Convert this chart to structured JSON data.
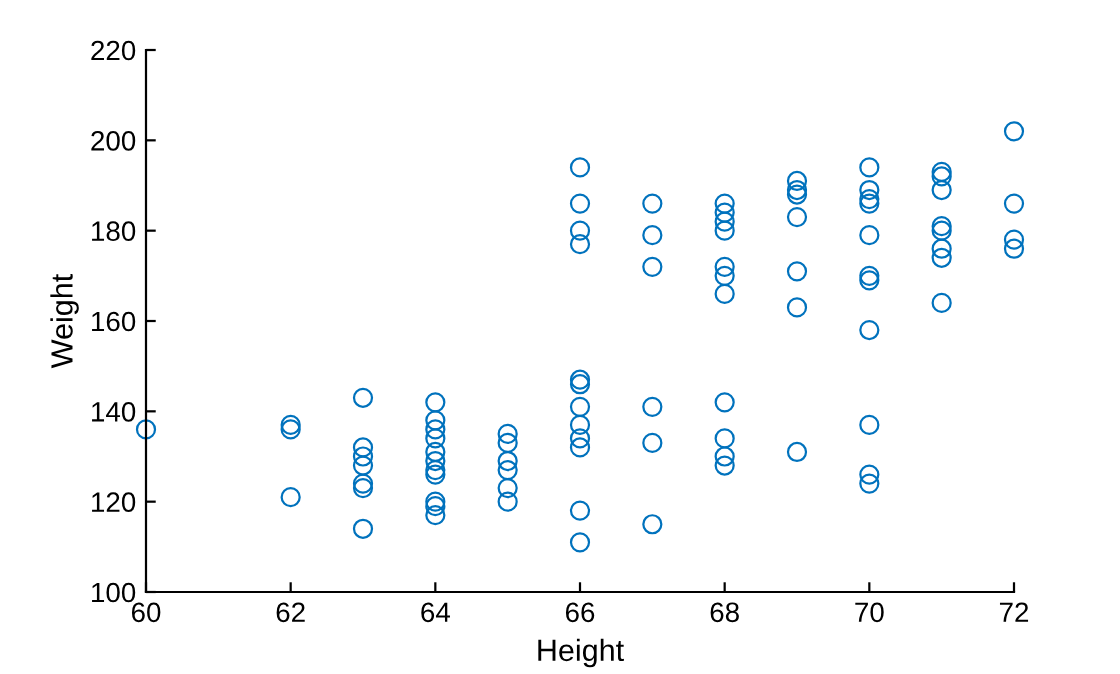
{
  "chart_data": {
    "type": "scatter",
    "xlabel": "Height",
    "ylabel": "Weight",
    "x": [
      60,
      62,
      62,
      62,
      63,
      63,
      63,
      63,
      63,
      63,
      63,
      64,
      64,
      64,
      64,
      64,
      64,
      64,
      64,
      64,
      64,
      64,
      65,
      65,
      65,
      65,
      65,
      65,
      66,
      66,
      66,
      66,
      66,
      66,
      66,
      66,
      66,
      66,
      66,
      66,
      67,
      67,
      67,
      67,
      67,
      67,
      68,
      68,
      68,
      68,
      68,
      68,
      68,
      68,
      68,
      68,
      68,
      69,
      69,
      69,
      69,
      69,
      69,
      69,
      70,
      70,
      70,
      70,
      70,
      70,
      70,
      70,
      70,
      70,
      70,
      71,
      71,
      71,
      71,
      71,
      71,
      71,
      71,
      72,
      72,
      72,
      72
    ],
    "values": [
      136,
      137,
      136,
      121,
      143,
      132,
      130,
      128,
      124,
      123,
      114,
      142,
      138,
      136,
      134,
      131,
      129,
      127,
      126,
      120,
      119,
      117,
      135,
      133,
      129,
      127,
      123,
      120,
      194,
      186,
      180,
      177,
      147,
      146,
      141,
      137,
      134,
      132,
      118,
      111,
      186,
      179,
      172,
      141,
      133,
      115,
      186,
      184,
      182,
      180,
      172,
      170,
      166,
      142,
      134,
      130,
      128,
      191,
      189,
      188,
      183,
      171,
      163,
      131,
      194,
      189,
      187,
      186,
      179,
      170,
      169,
      158,
      137,
      126,
      124,
      193,
      192,
      189,
      181,
      180,
      176,
      174,
      164,
      202,
      186,
      178,
      176
    ],
    "color": "#0072bd",
    "marker": "circle",
    "xlim": [
      60,
      72
    ],
    "xticks": [
      60,
      62,
      64,
      66,
      68,
      70,
      72
    ],
    "ylim": [
      100,
      220
    ],
    "yticks": [
      100,
      120,
      140,
      160,
      180,
      200,
      220
    ],
    "grid": false,
    "legend": false
  }
}
